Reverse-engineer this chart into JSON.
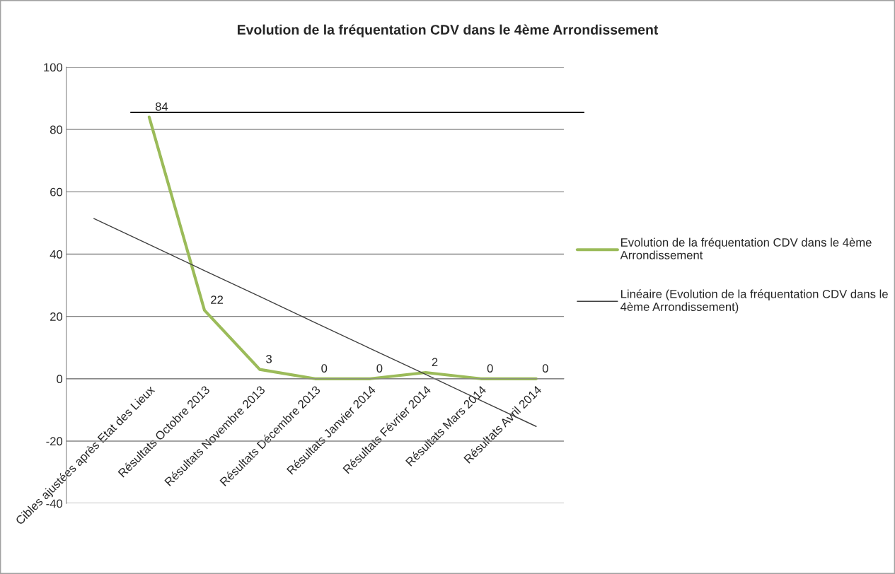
{
  "chart_data": {
    "type": "line",
    "title": "Evolution de la fréquentation CDV dans le 4ème Arrondissement",
    "categories": [
      null,
      "Cibles ajustées après Etat des Lieux",
      "Résultats Octobre 2013",
      "Résultats Novembre 2013",
      "Résultats Décembre 2013",
      "Résultats Janvier 2014",
      "Résultats Février 2014",
      "Résultats Mars 2014",
      "Résultats Avril 2014"
    ],
    "series": [
      {
        "name": "Evolution de la fréquentation CDV dans le 4ème Arrondissement",
        "color": "#9bbb59",
        "values": [
          null,
          84,
          22,
          3,
          0,
          0,
          2,
          0,
          0
        ],
        "value_labels": [
          null,
          "84",
          "22",
          "3",
          "0",
          "0",
          "2",
          "0",
          "0"
        ]
      },
      {
        "name": "Linéaire (Evolution de la fréquentation CDV dans le 4ème Arrondissement)",
        "color": "#404040",
        "values": [
          51.4,
          43.1,
          34.7,
          26.4,
          18.0,
          9.7,
          1.4,
          -7.0,
          -15.3
        ]
      }
    ],
    "ylim": [
      -40,
      100
    ],
    "yticks": [
      -40,
      -20,
      0,
      20,
      40,
      60,
      80,
      100
    ],
    "ref_lines": [
      {
        "axis": "y",
        "value": 85.5,
        "color": "#000000"
      }
    ],
    "grid": "y",
    "legend": "right",
    "marker": "none",
    "line_style": "solid"
  }
}
